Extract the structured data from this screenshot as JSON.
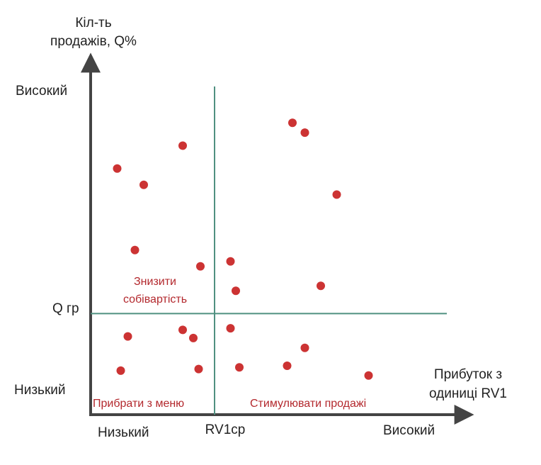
{
  "chart_data": {
    "type": "scatter",
    "title": "",
    "ylabel": [
      "Кіл-ть",
      "продажів, Q%"
    ],
    "xlabel": [
      "Прибуток з",
      "одиниці RV1"
    ],
    "y_high_label": "Високий",
    "y_low_label": "Низький",
    "x_low_label": "Низький",
    "x_high_label": "Високий",
    "y_threshold_label": "Q гр",
    "x_threshold_label": "RV1ср",
    "xlim": [
      0,
      100
    ],
    "ylim": [
      0,
      100
    ],
    "x_threshold": 35,
    "y_threshold": 31,
    "grid": false,
    "quadrant_labels": {
      "top_left": [
        "Знизити",
        "собівартість"
      ],
      "bottom_left": "Прибрати з меню",
      "bottom_right": "Стимулювати продажі"
    },
    "points": [
      {
        "x": 7.5,
        "y": 75.5
      },
      {
        "x": 15,
        "y": 70.5
      },
      {
        "x": 26,
        "y": 82.5
      },
      {
        "x": 12.5,
        "y": 50.5
      },
      {
        "x": 31,
        "y": 45.5
      },
      {
        "x": 39.5,
        "y": 47
      },
      {
        "x": 41,
        "y": 38
      },
      {
        "x": 57,
        "y": 89.5
      },
      {
        "x": 60.5,
        "y": 86.5
      },
      {
        "x": 69.5,
        "y": 67.5
      },
      {
        "x": 65,
        "y": 39.5
      },
      {
        "x": 10.5,
        "y": 24
      },
      {
        "x": 26,
        "y": 26
      },
      {
        "x": 29,
        "y": 23.5
      },
      {
        "x": 39.5,
        "y": 26.5
      },
      {
        "x": 8.5,
        "y": 13.5
      },
      {
        "x": 30.5,
        "y": 14
      },
      {
        "x": 42,
        "y": 14.5
      },
      {
        "x": 55.5,
        "y": 15
      },
      {
        "x": 60.5,
        "y": 20.5
      },
      {
        "x": 78.5,
        "y": 12
      }
    ],
    "colors": {
      "axis": "#444444",
      "divider": "#4f9080",
      "point": "#cc3333",
      "quadrant_text": "#b3282d"
    }
  }
}
